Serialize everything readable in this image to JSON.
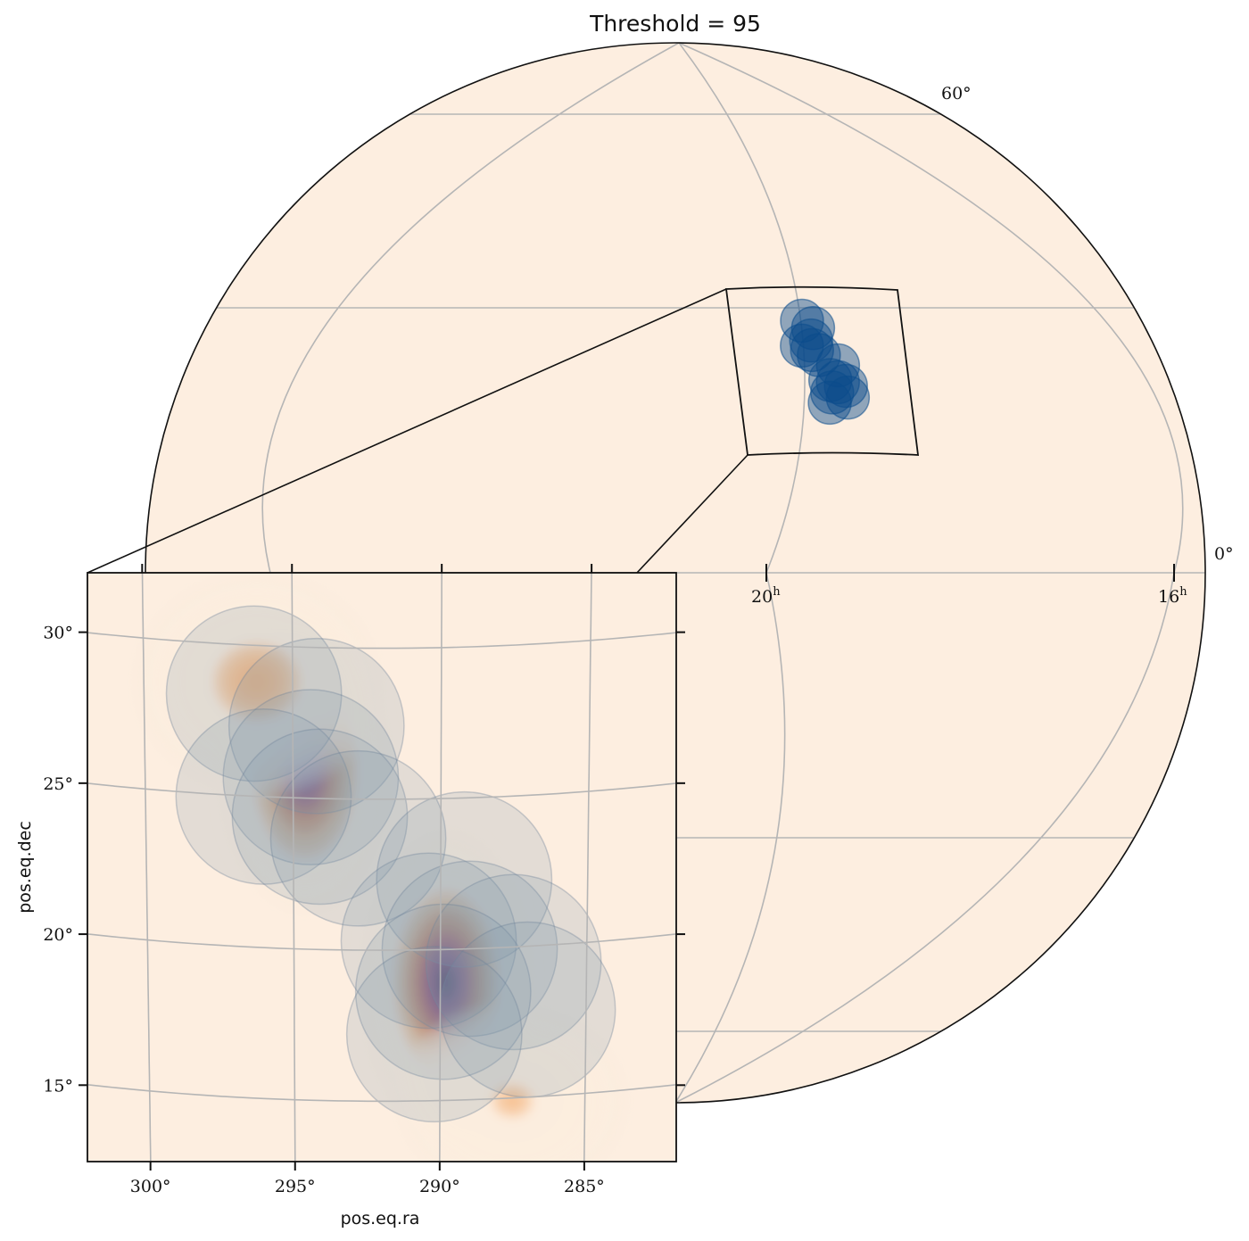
{
  "colors": {
    "sky_background": "#fdeee0",
    "grid": "#b5b5b5",
    "footprint": "#0b4c8c",
    "density_colormap": [
      "#fdeee0",
      "#f6b57e",
      "#e0743f",
      "#b8234f",
      "#6e1678",
      "#1a1030"
    ]
  },
  "chart_data": {
    "type": "heatmap",
    "title": "Threshold = 95",
    "projection": "orthographic",
    "globe": {
      "ra_tick_labels": [
        {
          "ra_hours": 20,
          "label": "20",
          "sup": "h"
        },
        {
          "ra_hours": 16,
          "label": "16",
          "sup": "h"
        }
      ],
      "dec_tick_labels": [
        {
          "dec_deg": 60,
          "label": "60°"
        },
        {
          "dec_deg": 0,
          "label": "0°"
        }
      ]
    },
    "inset": {
      "xlabel": "pos.eq.ra",
      "ylabel": "pos.eq.dec",
      "xlim": [
        302,
        282
      ],
      "ylim": [
        13,
        32.5
      ],
      "x_ticks": [
        300,
        295,
        290,
        285
      ],
      "x_tick_labels": [
        "300°",
        "295°",
        "290°",
        "285°"
      ],
      "y_ticks": [
        15,
        20,
        25,
        30
      ],
      "y_tick_labels": [
        "15°",
        "20°",
        "25°",
        "30°"
      ],
      "density_peaks": [
        {
          "ra": 294.6,
          "dec": 25.9,
          "sigma_ra": 1.1,
          "sigma_dec": 1.8,
          "peak": 0.85
        },
        {
          "ra": 289.8,
          "dec": 18.9,
          "sigma_ra": 1.1,
          "sigma_dec": 1.9,
          "peak": 1.0
        },
        {
          "ra": 296.2,
          "dec": 28.8,
          "sigma_ra": 1.6,
          "sigma_dec": 1.4,
          "peak": 0.2
        },
        {
          "ra": 287.5,
          "dec": 14.9,
          "sigma_ra": 1.5,
          "sigma_dec": 1.2,
          "peak": 0.12
        }
      ],
      "footprints": [
        {
          "ra": 296.3,
          "dec": 28.4,
          "radius_deg": 2.9
        },
        {
          "ra": 294.2,
          "dec": 27.4,
          "radius_deg": 2.9
        },
        {
          "ra": 294.4,
          "dec": 25.7,
          "radius_deg": 2.9
        },
        {
          "ra": 296.0,
          "dec": 25.0,
          "radius_deg": 2.9
        },
        {
          "ra": 294.1,
          "dec": 24.4,
          "radius_deg": 2.9
        },
        {
          "ra": 292.8,
          "dec": 23.7,
          "radius_deg": 2.9
        },
        {
          "ra": 289.2,
          "dec": 22.3,
          "radius_deg": 2.9
        },
        {
          "ra": 290.4,
          "dec": 20.3,
          "radius_deg": 2.9
        },
        {
          "ra": 289.0,
          "dec": 20.0,
          "radius_deg": 2.9
        },
        {
          "ra": 287.5,
          "dec": 19.5,
          "radius_deg": 2.9
        },
        {
          "ra": 289.9,
          "dec": 18.6,
          "radius_deg": 2.9
        },
        {
          "ra": 287.0,
          "dec": 17.9,
          "radius_deg": 2.9
        },
        {
          "ra": 290.2,
          "dec": 17.2,
          "radius_deg": 2.9
        }
      ]
    }
  }
}
